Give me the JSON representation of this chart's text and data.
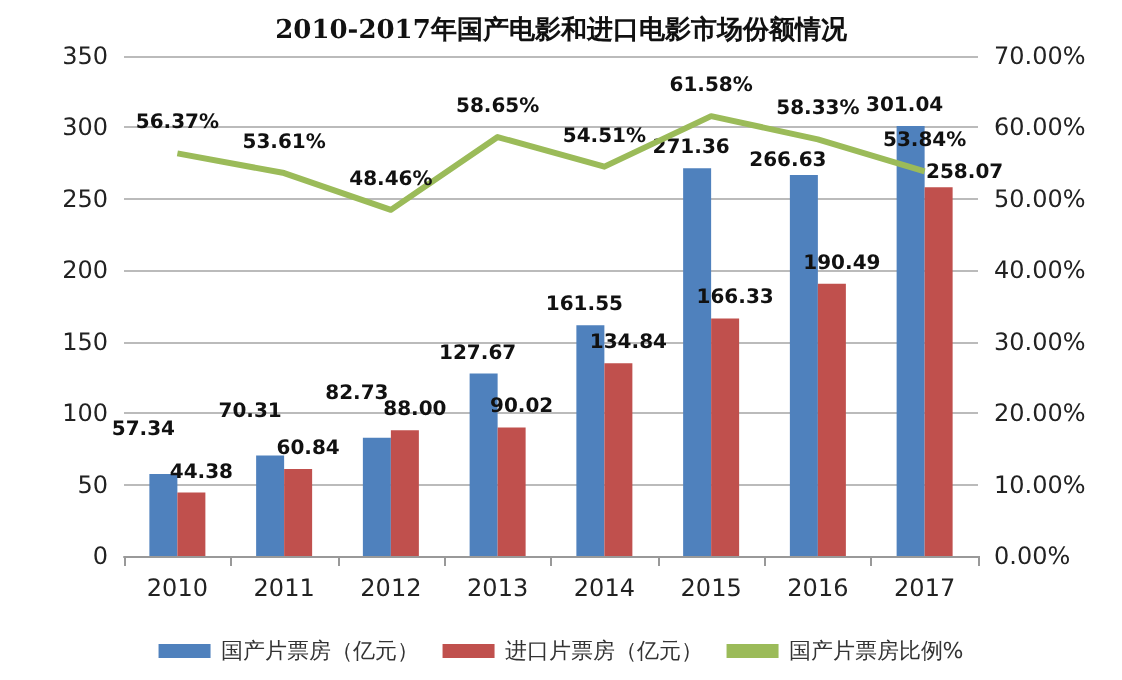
{
  "chart_data": {
    "type": "bar",
    "title": "2010-2017年国产电影和进口电影市场份额情况",
    "categories": [
      "2010",
      "2011",
      "2012",
      "2013",
      "2014",
      "2015",
      "2016",
      "2017"
    ],
    "series": [
      {
        "name": "国产片票房（亿元）",
        "color": "#4f81bd",
        "values": [
          57.34,
          70.31,
          82.73,
          127.67,
          161.55,
          271.36,
          266.63,
          301.04
        ],
        "value_labels": [
          "57.34",
          "70.31",
          "82.73",
          "127.67",
          "161.55",
          "271.36",
          "266.63",
          "301.04"
        ]
      },
      {
        "name": "进口片票房（亿元）",
        "color": "#c0504d",
        "values": [
          44.38,
          60.84,
          88.0,
          90.02,
          134.84,
          166.33,
          190.49,
          258.07
        ],
        "value_labels": [
          "44.38",
          "60.84",
          "88.00",
          "90.02",
          "134.84",
          "166.33",
          "190.49",
          "258.07"
        ]
      },
      {
        "name": "国产片票房比例%",
        "type": "line",
        "axis": "y2",
        "color": "#9bbb59",
        "values": [
          56.37,
          53.61,
          48.46,
          58.65,
          54.51,
          61.58,
          58.33,
          53.84
        ],
        "value_labels": [
          "56.37%",
          "53.61%",
          "48.46%",
          "58.65%",
          "54.51%",
          "61.58%",
          "58.33%",
          "53.84%"
        ]
      }
    ],
    "ylim": [
      0,
      350
    ],
    "yticks": [
      0,
      50,
      100,
      150,
      200,
      250,
      300,
      350
    ],
    "y2lim": [
      0,
      70
    ],
    "y2ticks": [
      {
        "value": 0,
        "label": "0.00%"
      },
      {
        "value": 10,
        "label": "10.00%"
      },
      {
        "value": 20,
        "label": "20.00%"
      },
      {
        "value": 30,
        "label": "30.00%"
      },
      {
        "value": 40,
        "label": "40.00%"
      },
      {
        "value": 50,
        "label": "50.00%"
      },
      {
        "value": 60,
        "label": "60.00%"
      },
      {
        "value": 70,
        "label": "70.00%"
      }
    ],
    "grid": "y",
    "legend": "bottom",
    "marker": "none"
  }
}
